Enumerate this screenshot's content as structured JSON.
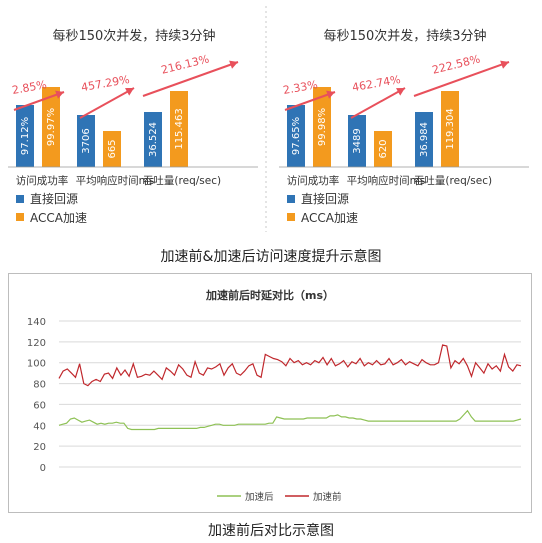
{
  "captions": {
    "top": "加速前&加速后访问速度提升示意图",
    "bottom": "加速前后对比示意图"
  },
  "colors": {
    "blue": "#2f74b5",
    "orange": "#f39a1e",
    "arrow": "#e8505b",
    "after_line": "#8ec155",
    "before_line": "#c0282d",
    "grid": "#d9d9d9"
  },
  "chart_data": [
    {
      "type": "bar",
      "title": "每秒150次并发，持续3分钟",
      "categories": [
        "访问成功率",
        "平均响应时间ms",
        "吞吐量(req/sec)"
      ],
      "series": [
        {
          "name": "直接回源",
          "labels": [
            "97.12%",
            "3706",
            "36.524"
          ]
        },
        {
          "name": "ACCA加速",
          "labels": [
            "99.97%",
            "665",
            "115.463"
          ]
        }
      ],
      "improvement": [
        "2.85%",
        "457.29%",
        "216.13%"
      ]
    },
    {
      "type": "bar",
      "title": "每秒150次并发，持续3分钟",
      "categories": [
        "访问成功率",
        "平均响应时间ms",
        "吞吐量(req/sec)"
      ],
      "series": [
        {
          "name": "直接回源",
          "labels": [
            "97.65%",
            "3489",
            "36.984"
          ]
        },
        {
          "name": "ACCA加速",
          "labels": [
            "99.98%",
            "620",
            "119.304"
          ]
        }
      ],
      "improvement": [
        "2.33%",
        "462.74%",
        "222.58%"
      ]
    },
    {
      "type": "line",
      "title": "加速前后时延对比（ms）",
      "ylim": [
        0,
        140
      ],
      "yticks": [
        0,
        20,
        40,
        60,
        80,
        100,
        120,
        140
      ],
      "grid": true,
      "legend": "bottom",
      "series": [
        {
          "name": "加速后",
          "values": [
            40,
            41,
            42,
            46,
            47,
            45,
            43,
            44,
            45,
            43,
            41,
            42,
            41,
            42,
            42,
            43,
            42,
            42,
            37,
            36,
            36,
            36,
            36,
            36,
            36,
            36,
            37,
            37,
            37,
            37,
            37,
            37,
            37,
            37,
            37,
            37,
            37,
            38,
            38,
            39,
            40,
            41,
            41,
            40,
            40,
            40,
            40,
            41,
            41,
            41,
            41,
            41,
            41,
            41,
            41,
            42,
            42,
            48,
            47,
            46,
            46,
            46,
            46,
            46,
            46,
            47,
            47,
            47,
            47,
            47,
            47,
            49,
            49,
            50,
            48,
            48,
            47,
            47,
            46,
            46,
            45,
            44,
            44,
            44,
            44,
            44,
            44,
            44,
            44,
            44,
            44,
            44,
            44,
            44,
            44,
            44,
            44,
            44,
            44,
            44,
            44,
            44,
            44,
            44,
            44,
            46,
            50,
            54,
            48,
            44,
            44,
            44,
            44,
            44,
            44,
            44,
            44,
            44,
            44,
            44,
            45,
            46
          ]
        },
        {
          "name": "加速前",
          "values": [
            85,
            92,
            94,
            90,
            86,
            99,
            80,
            78,
            82,
            84,
            82,
            89,
            90,
            85,
            95,
            88,
            93,
            87,
            99,
            86,
            87,
            89,
            88,
            92,
            88,
            84,
            95,
            92,
            88,
            98,
            94,
            88,
            86,
            101,
            90,
            88,
            95,
            94,
            96,
            99,
            88,
            95,
            99,
            90,
            88,
            92,
            97,
            99,
            88,
            86,
            108,
            106,
            104,
            103,
            101,
            97,
            104,
            100,
            102,
            98,
            100,
            98,
            102,
            100,
            105,
            98,
            104,
            97,
            99,
            102,
            96,
            101,
            99,
            104,
            97,
            100,
            98,
            102,
            98,
            99,
            104,
            98,
            100,
            103,
            98,
            101,
            99,
            97,
            103,
            100,
            98,
            98,
            100,
            117,
            116,
            95,
            102,
            99,
            104,
            97,
            87,
            100,
            95,
            90,
            99,
            94,
            97,
            92,
            108,
            96,
            92,
            98,
            97
          ]
        }
      ]
    }
  ]
}
